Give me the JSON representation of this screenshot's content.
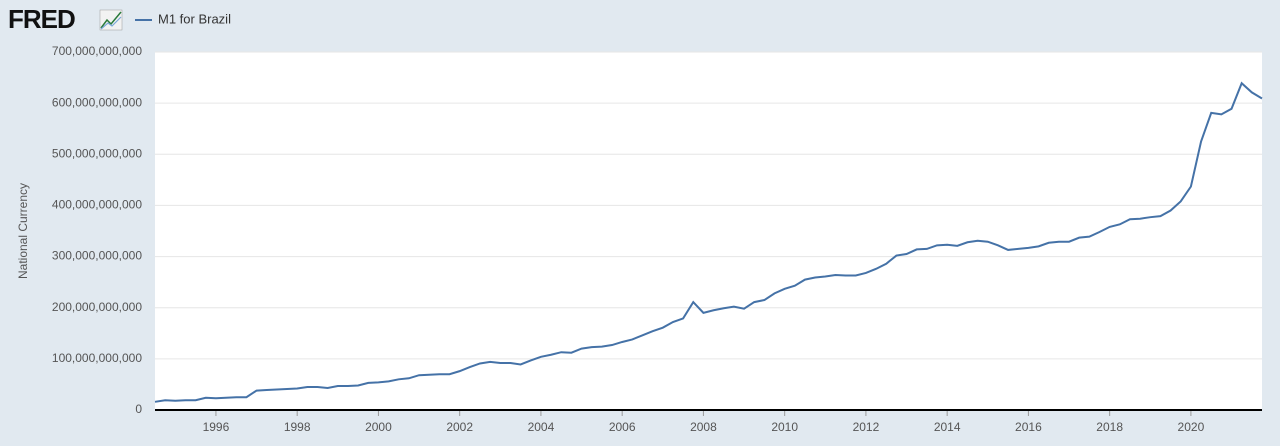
{
  "logo": "FRED",
  "chart_data": {
    "type": "line",
    "y_label": "National Currency",
    "x": [
      1994.5,
      1994.75,
      1995,
      1995.25,
      1995.5,
      1995.75,
      1996,
      1996.25,
      1996.5,
      1996.75,
      1997,
      1997.25,
      1997.5,
      1997.75,
      1998,
      1998.25,
      1998.5,
      1998.75,
      1999,
      1999.25,
      1999.5,
      1999.75,
      2000,
      2000.25,
      2000.5,
      2000.75,
      2001,
      2001.25,
      2001.5,
      2001.75,
      2002,
      2002.25,
      2002.5,
      2002.75,
      2003,
      2003.25,
      2003.5,
      2003.75,
      2004,
      2004.25,
      2004.5,
      2004.75,
      2005,
      2005.25,
      2005.5,
      2005.75,
      2006,
      2006.25,
      2006.5,
      2006.75,
      2007,
      2007.25,
      2007.5,
      2007.75,
      2008,
      2008.25,
      2008.5,
      2008.75,
      2009,
      2009.25,
      2009.5,
      2009.75,
      2010,
      2010.25,
      2010.5,
      2010.75,
      2011,
      2011.25,
      2011.5,
      2011.75,
      2012,
      2012.25,
      2012.5,
      2012.75,
      2013,
      2013.25,
      2013.5,
      2013.75,
      2014,
      2014.25,
      2014.5,
      2014.75,
      2015,
      2015.25,
      2015.5,
      2015.75,
      2016,
      2016.25,
      2016.5,
      2016.75,
      2017,
      2017.25,
      2017.5,
      2017.75,
      2018,
      2018.25,
      2018.5,
      2018.75,
      2019,
      2019.25,
      2019.5,
      2019.75,
      2020,
      2020.25,
      2020.5,
      2020.75,
      2021,
      2021.25,
      2021.5,
      2021.75
    ],
    "series": [
      {
        "name": "M1 for Brazil",
        "color": "#4572a7",
        "values": [
          16000000000,
          19000000000,
          18000000000,
          19000000000,
          19000000000,
          24000000000,
          23000000000,
          24000000000,
          25000000000,
          25000000000,
          38000000000,
          39000000000,
          40000000000,
          41000000000,
          42000000000,
          45000000000,
          45000000000,
          43000000000,
          47000000000,
          47000000000,
          48000000000,
          53000000000,
          54000000000,
          56000000000,
          60000000000,
          62000000000,
          68000000000,
          69000000000,
          70000000000,
          70000000000,
          76000000000,
          84000000000,
          91000000000,
          94000000000,
          92000000000,
          92000000000,
          89000000000,
          97000000000,
          104000000000,
          108000000000,
          113000000000,
          112000000000,
          120000000000,
          123000000000,
          124000000000,
          127000000000,
          133000000000,
          138000000000,
          146000000000,
          154000000000,
          161000000000,
          172000000000,
          179000000000,
          211000000000,
          190000000000,
          195000000000,
          199000000000,
          202000000000,
          198000000000,
          211000000000,
          215000000000,
          228000000000,
          237000000000,
          243000000000,
          255000000000,
          259000000000,
          261000000000,
          264000000000,
          263000000000,
          263000000000,
          268000000000,
          276000000000,
          286000000000,
          302000000000,
          305000000000,
          314000000000,
          315000000000,
          322000000000,
          323000000000,
          321000000000,
          328000000000,
          331000000000,
          329000000000,
          322000000000,
          313000000000,
          315000000000,
          317000000000,
          320000000000,
          327000000000,
          329000000000,
          329000000000,
          337000000000,
          339000000000,
          348000000000,
          358000000000,
          363000000000,
          373000000000,
          374000000000,
          377000000000,
          379000000000,
          390000000000,
          408000000000,
          437000000000,
          525000000000,
          581000000000,
          578000000000,
          589000000000,
          639000000000,
          621000000000,
          609000000000
        ]
      }
    ],
    "xlim": [
      1994.5,
      2021.75
    ],
    "xticks": [
      1996,
      1998,
      2000,
      2002,
      2004,
      2006,
      2008,
      2010,
      2012,
      2014,
      2016,
      2018,
      2020
    ],
    "ylim": [
      0,
      700000000000
    ],
    "yticks": [
      0,
      {
        "value": 100000000000,
        "label": "100,000,000,000"
      },
      {
        "value": 200000000000,
        "label": "200,000,000,000"
      },
      {
        "value": 300000000000,
        "label": "300,000,000,000"
      },
      {
        "value": 400000000000,
        "label": "400,000,000,000"
      },
      {
        "value": 500000000000,
        "label": "500,000,000,000"
      },
      {
        "value": 600000000000,
        "label": "600,000,000,000"
      },
      {
        "value": 700000000000,
        "label": "700,000,000,000"
      }
    ],
    "grid": true
  }
}
